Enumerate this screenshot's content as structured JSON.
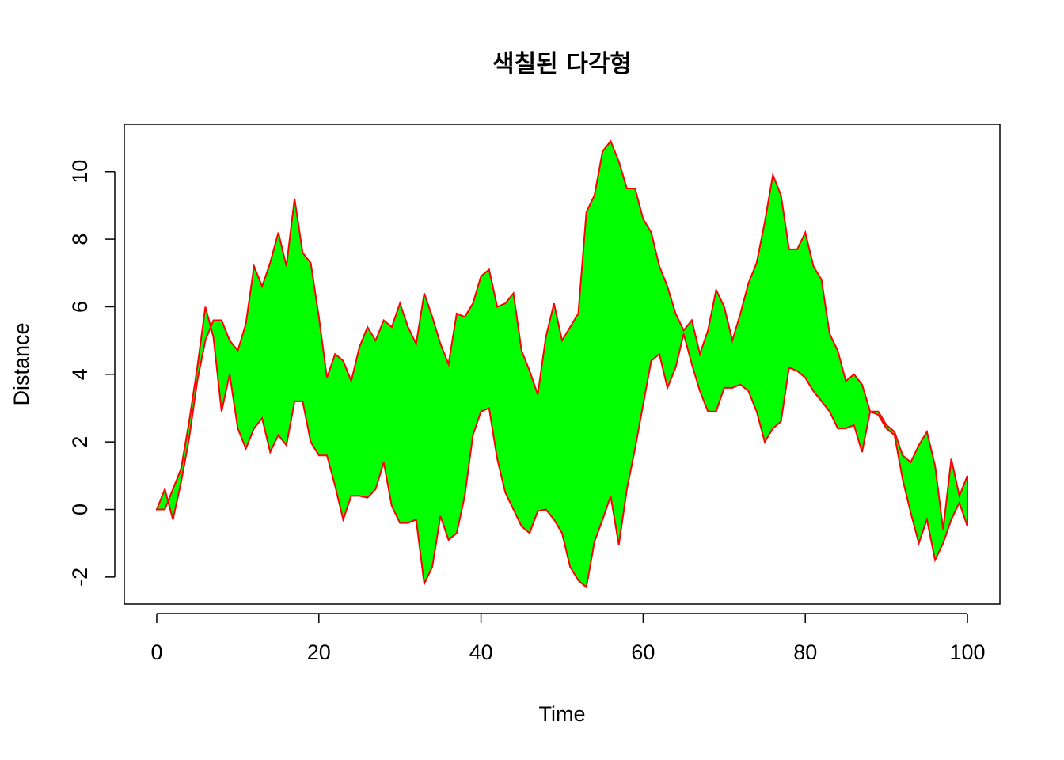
{
  "chart_data": {
    "type": "area",
    "title": "색칠된 다각형",
    "xlabel": "Time",
    "ylabel": "Distance",
    "xlim": [
      -4,
      104
    ],
    "ylim": [
      -2.8,
      11.4
    ],
    "x_ticks": [
      0,
      20,
      40,
      60,
      80,
      100
    ],
    "y_ticks": [
      -2,
      0,
      2,
      4,
      6,
      8,
      10
    ],
    "x_tick_labels": [
      "0",
      "20",
      "40",
      "60",
      "80",
      "100"
    ],
    "y_tick_labels": [
      "-2",
      "0",
      "2",
      "4",
      "6",
      "8",
      "10"
    ],
    "fill_color": "#00ff00",
    "border_color": "#ff0000",
    "grid": false,
    "legend": "none",
    "x": [
      0,
      1,
      2,
      3,
      4,
      5,
      6,
      7,
      8,
      9,
      10,
      11,
      12,
      13,
      14,
      15,
      16,
      17,
      18,
      19,
      20,
      21,
      22,
      23,
      24,
      25,
      26,
      27,
      28,
      29,
      30,
      31,
      32,
      33,
      34,
      35,
      36,
      37,
      38,
      39,
      40,
      41,
      42,
      43,
      44,
      45,
      46,
      47,
      48,
      49,
      50,
      51,
      52,
      53,
      54,
      55,
      56,
      57,
      58,
      59,
      60,
      61,
      62,
      63,
      64,
      65,
      66,
      67,
      68,
      69,
      70,
      71,
      72,
      73,
      74,
      75,
      76,
      77,
      78,
      79,
      80,
      81,
      82,
      83,
      84,
      85,
      86,
      87,
      88,
      89,
      90,
      91,
      92,
      93,
      94,
      95,
      96,
      97,
      98,
      99,
      100
    ],
    "series": [
      {
        "values": [
          0,
          0.6,
          -0.3,
          0.8,
          2.1,
          3.8,
          5.0,
          5.6,
          5.6,
          5.0,
          4.7,
          5.5,
          7.2,
          6.6,
          7.3,
          8.2,
          7.2,
          9.2,
          7.6,
          7.3,
          5.7,
          3.9,
          4.6,
          4.4,
          3.8,
          4.8,
          5.4,
          5.0,
          5.6,
          5.4,
          6.1,
          5.4,
          4.9,
          6.4,
          5.7,
          4.9,
          4.3,
          5.8,
          5.7,
          6.1,
          6.9,
          7.1,
          6.0,
          6.1,
          6.4,
          4.7,
          4.1,
          3.4,
          5.1,
          6.1,
          5.0,
          5.4,
          5.8,
          8.8,
          9.3,
          10.6,
          10.9,
          10.3,
          9.5,
          9.5,
          8.6,
          8.2,
          7.2,
          6.6,
          5.8,
          5.3,
          5.6,
          4.6,
          5.3,
          6.5,
          6.0,
          5.0,
          5.8,
          6.7,
          7.3,
          8.5,
          9.9,
          9.3,
          7.7,
          7.7,
          8.2,
          7.2,
          6.8,
          5.2,
          4.7,
          3.8,
          4.0,
          3.7,
          2.9,
          2.9,
          2.5,
          2.3,
          1.6,
          1.4,
          1.9,
          2.3,
          1.3,
          -0.6,
          1.5,
          0.4,
          1.0
        ]
      },
      {
        "values": [
          0,
          0,
          0.6,
          1.2,
          2.6,
          4.2,
          6.0,
          5.1,
          2.9,
          4.0,
          2.4,
          1.8,
          2.4,
          2.7,
          1.7,
          2.2,
          1.9,
          3.2,
          3.2,
          2.0,
          1.6,
          1.6,
          0.7,
          -0.3,
          0.4,
          0.4,
          0.35,
          0.6,
          1.4,
          0.1,
          -0.4,
          -0.4,
          -0.3,
          -2.2,
          -1.7,
          -0.2,
          -0.9,
          -0.7,
          0.4,
          2.2,
          2.9,
          3.0,
          1.5,
          0.5,
          0,
          -0.5,
          -0.7,
          -0.05,
          0,
          -0.3,
          -0.7,
          -1.7,
          -2.1,
          -2.3,
          -0.95,
          -0.3,
          0.4,
          -1.05,
          0.6,
          1.8,
          3.1,
          4.4,
          4.6,
          3.6,
          4.2,
          5.2,
          4.3,
          3.5,
          2.9,
          2.9,
          3.6,
          3.6,
          3.7,
          3.5,
          2.9,
          2.0,
          2.4,
          2.6,
          4.2,
          4.1,
          3.9,
          3.5,
          3.2,
          2.9,
          2.4,
          2.4,
          2.5,
          1.7,
          2.9,
          2.8,
          2.4,
          2.2,
          0.9,
          -0.1,
          -1.0,
          -0.3,
          -1.5,
          -1.0,
          -0.3,
          0.2,
          -0.5
        ]
      }
    ]
  }
}
